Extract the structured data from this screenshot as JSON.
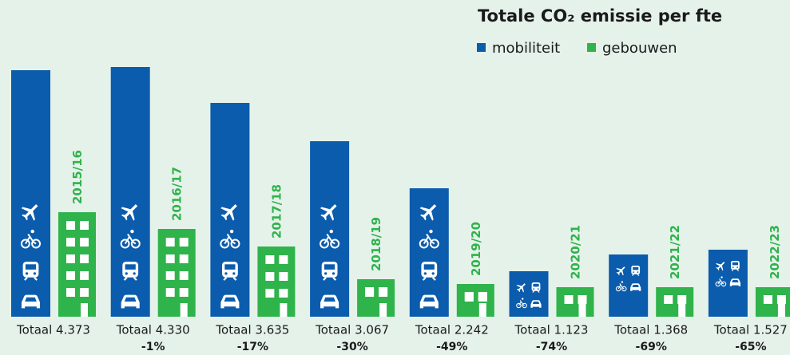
{
  "chart_data": {
    "type": "bar",
    "title": "Totale CO₂ emissie per fte",
    "categories": [
      "2015/16",
      "2016/17",
      "2017/18",
      "2018/19",
      "2019/20",
      "2020/21",
      "2021/22",
      "2022/23"
    ],
    "series": [
      {
        "name": "mobiliteit",
        "color": "#0b5cad",
        "values": [
          3090,
          3130,
          2680,
          2200,
          1610,
          570,
          780,
          840
        ]
      },
      {
        "name": "gebouwen",
        "color": "#2fb34b",
        "values": [
          1310,
          1100,
          880,
          470,
          410,
          370,
          370,
          370
        ]
      }
    ],
    "totals": [
      "Totaal 4.373",
      "Totaal 4.330",
      "Totaal 3.635",
      "Totaal 3.067",
      "Totaal 2.242",
      "Totaal 1.123",
      "Totaal 1.368",
      "Totaal 1.527"
    ],
    "changes": [
      null,
      "-1%",
      "-17%",
      "-30%",
      "-49%",
      "-74%",
      "-69%",
      "-65%"
    ],
    "ylim": [
      0,
      3970
    ]
  }
}
